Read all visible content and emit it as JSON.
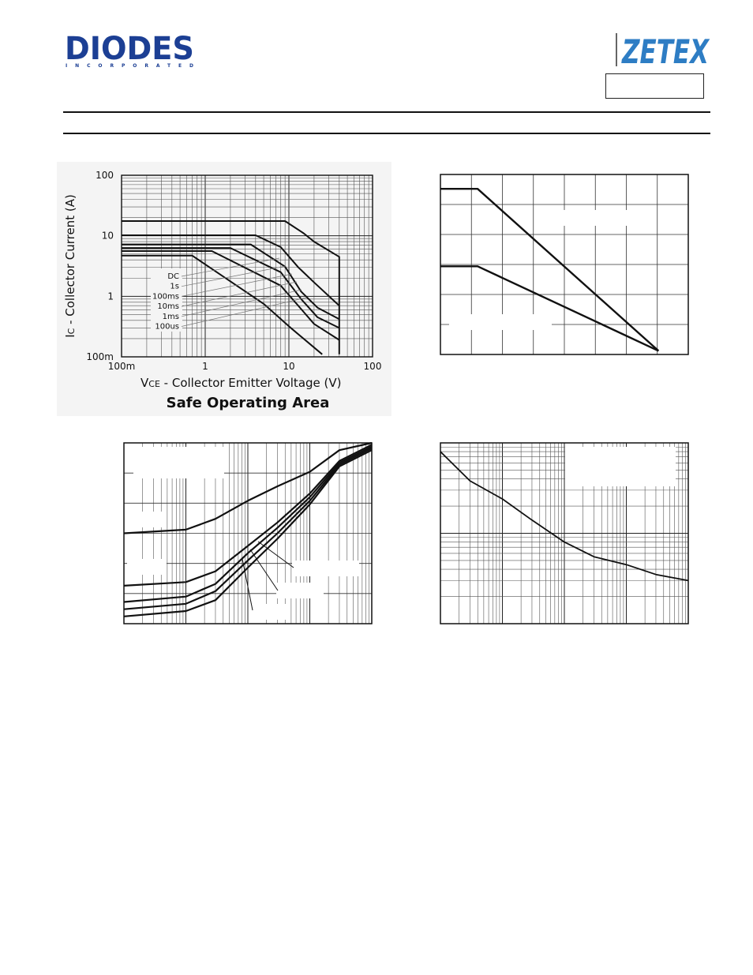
{
  "header": {
    "diodes_logo": {
      "text": "DIODES",
      "subtext": "INCORPORATED",
      "color": "#1c3f94"
    },
    "zetex_logo": {
      "text": "ZETEX",
      "color": "#2e7dc4"
    },
    "part_number": ""
  },
  "chart_data": [
    {
      "id": "safe-operating-area",
      "type": "line",
      "title": "Safe Operating Area",
      "xlabel": "VCE - Collector Emitter Voltage (V)",
      "xlabel_main": "V",
      "xlabel_sub": "CE",
      "xlabel_rest": " - Collector Emitter Voltage (V)",
      "ylabel": "IC - Collector Current (A)",
      "ylabel_main": "I",
      "ylabel_sub": "C",
      "ylabel_rest": " - Collector Current (A)",
      "xscale": "log",
      "yscale": "log",
      "xlim": [
        0.1,
        100
      ],
      "ylim": [
        0.1,
        100
      ],
      "x_ticks": [
        {
          "v": 0.1,
          "label": "100m"
        },
        {
          "v": 1,
          "label": "1"
        },
        {
          "v": 10,
          "label": "10"
        },
        {
          "v": 100,
          "label": "100"
        }
      ],
      "y_ticks": [
        {
          "v": 0.1,
          "label": "100m"
        },
        {
          "v": 1,
          "label": "1"
        },
        {
          "v": 10,
          "label": "10"
        },
        {
          "v": 100,
          "label": "100"
        }
      ],
      "legend": [
        "DC",
        "1s",
        "100ms",
        "10ms",
        "1ms",
        "100us"
      ],
      "series": [
        {
          "name": "100us",
          "points": [
            [
              0.1,
              17.5
            ],
            [
              9,
              17.5
            ],
            [
              15,
              11
            ],
            [
              20,
              8
            ],
            [
              40,
              4.5
            ],
            [
              40,
              0.11
            ]
          ]
        },
        {
          "name": "1ms",
          "points": [
            [
              0.1,
              10.2
            ],
            [
              4,
              10.2
            ],
            [
              8,
              6.5
            ],
            [
              13,
              3
            ],
            [
              20,
              1.7
            ],
            [
              40,
              0.7
            ]
          ]
        },
        {
          "name": "10ms",
          "points": [
            [
              0.1,
              7.2
            ],
            [
              3.5,
              7.2
            ],
            [
              9,
              3.1
            ],
            [
              14,
              1.2
            ],
            [
              22,
              0.65
            ],
            [
              40,
              0.42
            ]
          ]
        },
        {
          "name": "100ms",
          "points": [
            [
              0.1,
              6.3
            ],
            [
              2,
              6.3
            ],
            [
              8,
              2.5
            ],
            [
              14,
              0.9
            ],
            [
              22,
              0.45
            ],
            [
              40,
              0.3
            ]
          ]
        },
        {
          "name": "1s",
          "points": [
            [
              0.1,
              5.6
            ],
            [
              1.2,
              5.6
            ],
            [
              8,
              1.5
            ],
            [
              20,
              0.35
            ],
            [
              40,
              0.19
            ]
          ]
        },
        {
          "name": "DC",
          "points": [
            [
              0.1,
              4.7
            ],
            [
              0.7,
              4.7
            ],
            [
              5,
              0.75
            ],
            [
              10,
              0.32
            ],
            [
              25,
              0.11
            ]
          ]
        }
      ]
    },
    {
      "id": "derating",
      "type": "line",
      "title": "",
      "xlabel": "",
      "ylabel": "",
      "xlim": [
        0,
        1
      ],
      "ylim": [
        0,
        1
      ],
      "series": [
        {
          "name": "upper",
          "points": [
            [
              0,
              0.92
            ],
            [
              0.15,
              0.92
            ],
            [
              0.88,
              0.02
            ]
          ]
        },
        {
          "name": "lower",
          "points": [
            [
              0,
              0.49
            ],
            [
              0.15,
              0.49
            ],
            [
              0.88,
              0.02
            ]
          ]
        }
      ]
    },
    {
      "id": "gain-vs-current",
      "type": "line",
      "title": "",
      "xlabel": "",
      "ylabel": "",
      "xscale": "log",
      "xlim": [
        0.001,
        10
      ],
      "ylim": [
        0,
        1
      ],
      "series": [
        {
          "name": "curve-1",
          "points": [
            [
              0.001,
              0.5
            ],
            [
              0.01,
              0.52
            ],
            [
              0.03,
              0.58
            ],
            [
              0.1,
              0.68
            ],
            [
              0.3,
              0.76
            ],
            [
              1,
              0.84
            ],
            [
              3,
              0.96
            ],
            [
              10,
              1.0
            ]
          ]
        },
        {
          "name": "curve-2",
          "points": [
            [
              0.001,
              0.21
            ],
            [
              0.01,
              0.23
            ],
            [
              0.03,
              0.29
            ],
            [
              0.1,
              0.43
            ],
            [
              0.3,
              0.56
            ],
            [
              1,
              0.72
            ],
            [
              3,
              0.9
            ],
            [
              10,
              0.99
            ]
          ]
        },
        {
          "name": "curve-3",
          "points": [
            [
              0.001,
              0.12
            ],
            [
              0.01,
              0.15
            ],
            [
              0.03,
              0.22
            ],
            [
              0.1,
              0.39
            ],
            [
              0.3,
              0.53
            ],
            [
              1,
              0.7
            ],
            [
              3,
              0.89
            ],
            [
              10,
              0.98
            ]
          ]
        },
        {
          "name": "curve-4",
          "points": [
            [
              0.001,
              0.08
            ],
            [
              0.01,
              0.11
            ],
            [
              0.03,
              0.18
            ],
            [
              0.1,
              0.35
            ],
            [
              0.3,
              0.5
            ],
            [
              1,
              0.68
            ],
            [
              3,
              0.88
            ],
            [
              10,
              0.97
            ]
          ]
        },
        {
          "name": "curve-5",
          "points": [
            [
              0.001,
              0.04
            ],
            [
              0.01,
              0.07
            ],
            [
              0.03,
              0.13
            ],
            [
              0.1,
              0.31
            ],
            [
              0.3,
              0.47
            ],
            [
              1,
              0.66
            ],
            [
              3,
              0.87
            ],
            [
              10,
              0.96
            ]
          ]
        }
      ]
    },
    {
      "id": "saturation-vs-current",
      "type": "line",
      "title": "",
      "xlabel": "",
      "ylabel": "",
      "xscale": "log",
      "yscale": "log",
      "xlim": [
        0.001,
        10
      ],
      "ylim": [
        0.01,
        1
      ],
      "series": [
        {
          "name": "curve",
          "points": [
            [
              0.001,
              0.8
            ],
            [
              0.003,
              0.38
            ],
            [
              0.01,
              0.24
            ],
            [
              0.03,
              0.14
            ],
            [
              0.1,
              0.08
            ],
            [
              0.3,
              0.055
            ],
            [
              1,
              0.045
            ],
            [
              3,
              0.035
            ],
            [
              10,
              0.03
            ]
          ]
        }
      ]
    }
  ]
}
